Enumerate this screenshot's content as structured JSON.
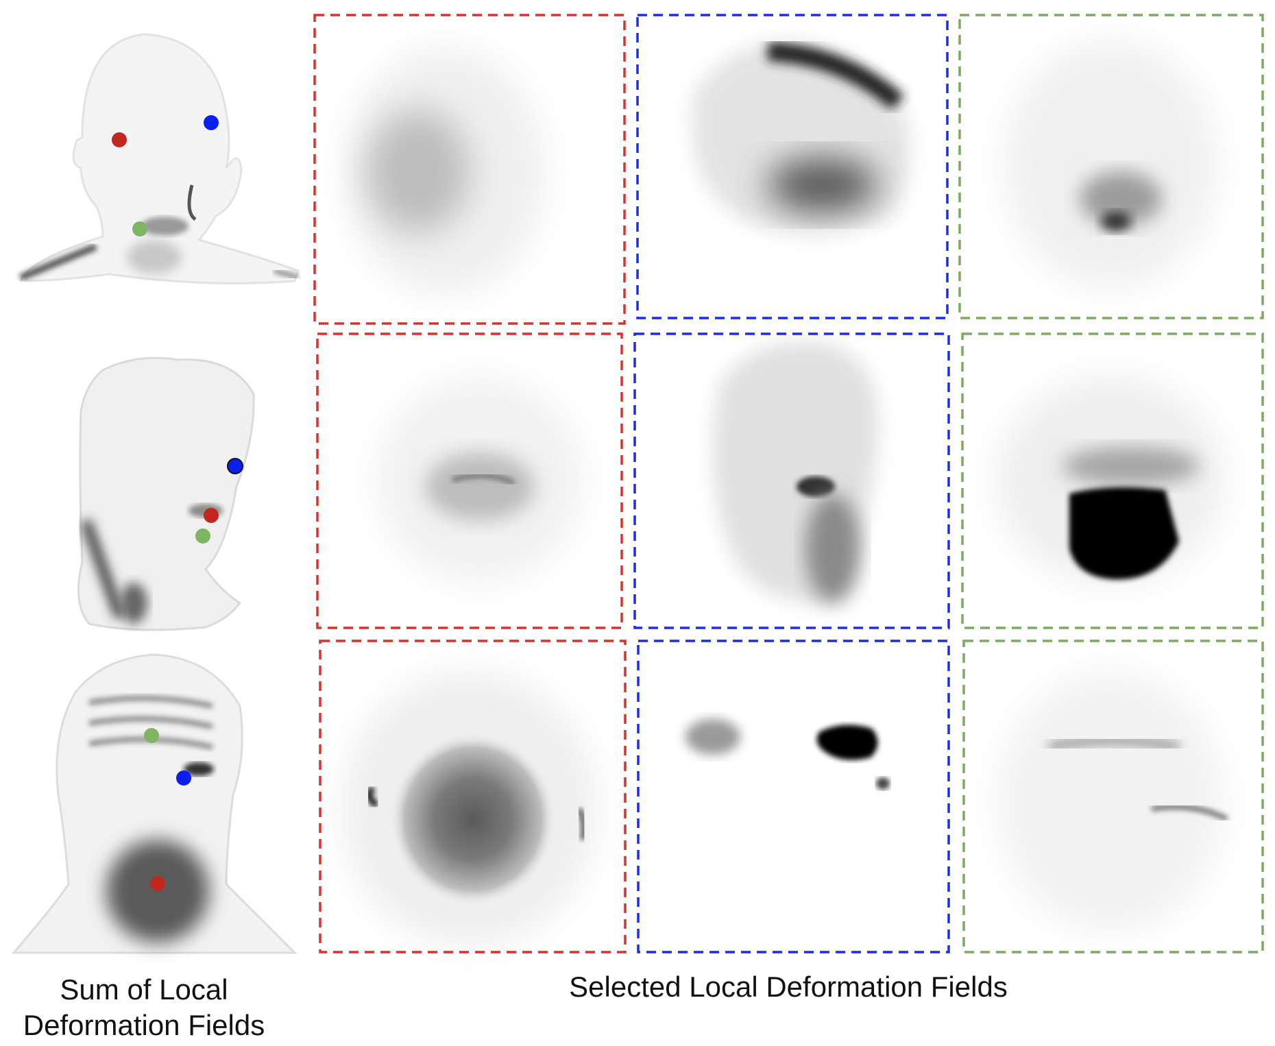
{
  "captions": {
    "left_line1": "Sum of Local",
    "left_line2": "Deformation Fields",
    "right": "Selected Local Deformation Fields"
  },
  "colors": {
    "red": "#d8332a",
    "blue": "#1a2ee8",
    "green": "#7aab5e",
    "marker_red": "#c0281d",
    "marker_blue": "#0a1ff2",
    "marker_green": "#7db563"
  }
}
